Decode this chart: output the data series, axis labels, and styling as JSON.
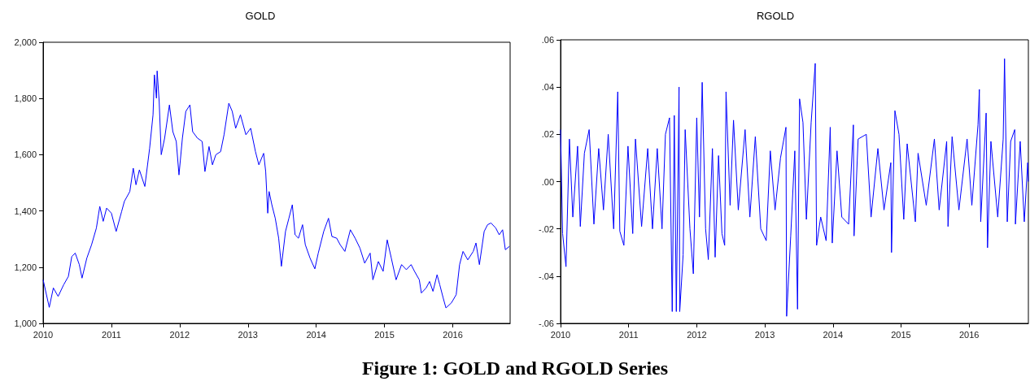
{
  "chart_data": [
    {
      "type": "line",
      "title": "GOLD",
      "annotations": [
        "Figure 1: GOLD and RGOLD Series"
      ],
      "marker": "none",
      "line_style": "solid",
      "xlim": [
        2010,
        2016.84
      ],
      "xticks": [
        2010,
        2011,
        2012,
        2013,
        2014,
        2015,
        2016
      ],
      "ylim": [
        1000,
        2000
      ],
      "yticks": [
        {
          "value": 1000,
          "label": "1,000"
        },
        {
          "value": 1200,
          "label": "1,200"
        },
        {
          "value": 1400,
          "label": "1,400"
        },
        {
          "value": 1600,
          "label": "1,600"
        },
        {
          "value": 1800,
          "label": "1,800"
        },
        {
          "value": 2000,
          "label": "2,000"
        }
      ],
      "series": [
        {
          "color": "#0000ff",
          "x": [
            2010.0,
            2010.09,
            2010.15,
            2010.22,
            2010.3,
            2010.37,
            2010.42,
            2010.47,
            2010.53,
            2010.57,
            2010.64,
            2010.71,
            2010.78,
            2010.83,
            2010.88,
            2010.93,
            2011.0,
            2011.07,
            2011.15,
            2011.19,
            2011.27,
            2011.32,
            2011.36,
            2011.41,
            2011.49,
            2011.56,
            2011.61,
            2011.63,
            2011.66,
            2011.67,
            2011.7,
            2011.73,
            2011.78,
            2011.85,
            2011.9,
            2011.95,
            2011.99,
            2012.04,
            2012.09,
            2012.15,
            2012.19,
            2012.26,
            2012.33,
            2012.37,
            2012.43,
            2012.48,
            2012.53,
            2012.6,
            2012.65,
            2012.72,
            2012.77,
            2012.82,
            2012.89,
            2012.97,
            2013.04,
            2013.11,
            2013.16,
            2013.23,
            2013.26,
            2013.29,
            2013.31,
            2013.35,
            2013.4,
            2013.45,
            2013.49,
            2013.55,
            2013.6,
            2013.65,
            2013.69,
            2013.74,
            2013.8,
            2013.84,
            2013.91,
            2013.98,
            2014.03,
            2014.11,
            2014.18,
            2014.23,
            2014.3,
            2014.35,
            2014.42,
            2014.5,
            2014.57,
            2014.64,
            2014.71,
            2014.79,
            2014.83,
            2014.91,
            2014.98,
            2015.04,
            2015.1,
            2015.17,
            2015.25,
            2015.32,
            2015.39,
            2015.44,
            2015.51,
            2015.54,
            2015.61,
            2015.66,
            2015.71,
            2015.77,
            2015.81,
            2015.86,
            2015.9,
            2015.98,
            2016.05,
            2016.1,
            2016.15,
            2016.22,
            2016.3,
            2016.34,
            2016.39,
            2016.46,
            2016.51,
            2016.56,
            2016.63,
            2016.68,
            2016.73,
            2016.77,
            2016.83
          ],
          "values": [
            1155,
            1057,
            1126,
            1096,
            1137,
            1167,
            1238,
            1250,
            1209,
            1161,
            1232,
            1280,
            1339,
            1416,
            1363,
            1410,
            1392,
            1327,
            1398,
            1434,
            1469,
            1552,
            1493,
            1546,
            1487,
            1623,
            1742,
            1884,
            1801,
            1898,
            1789,
            1600,
            1659,
            1777,
            1682,
            1647,
            1528,
            1659,
            1754,
            1777,
            1682,
            1659,
            1647,
            1540,
            1629,
            1564,
            1600,
            1611,
            1671,
            1783,
            1754,
            1694,
            1742,
            1671,
            1694,
            1611,
            1564,
            1605,
            1540,
            1392,
            1469,
            1422,
            1374,
            1303,
            1203,
            1327,
            1374,
            1422,
            1315,
            1303,
            1351,
            1280,
            1232,
            1194,
            1250,
            1327,
            1374,
            1309,
            1303,
            1280,
            1256,
            1333,
            1303,
            1268,
            1214,
            1250,
            1155,
            1220,
            1185,
            1297,
            1232,
            1155,
            1209,
            1191,
            1209,
            1185,
            1155,
            1108,
            1126,
            1149,
            1114,
            1173,
            1137,
            1090,
            1055,
            1073,
            1102,
            1209,
            1256,
            1226,
            1256,
            1286,
            1209,
            1327,
            1351,
            1357,
            1339,
            1315,
            1333,
            1262,
            1274
          ]
        }
      ]
    },
    {
      "type": "line",
      "title": "RGOLD",
      "marker": "none",
      "line_style": "solid",
      "xlim": [
        2010,
        2016.87
      ],
      "xticks": [
        2010,
        2011,
        2012,
        2013,
        2014,
        2015,
        2016
      ],
      "ylim": [
        -0.06,
        0.06
      ],
      "yticks": [
        {
          "value": -0.06,
          "label": "-.06"
        },
        {
          "value": -0.04,
          "label": "-.04"
        },
        {
          "value": -0.02,
          "label": "-.02"
        },
        {
          "value": 0,
          "label": ".00"
        },
        {
          "value": 0.02,
          "label": ".02"
        },
        {
          "value": 0.04,
          "label": ".04"
        },
        {
          "value": 0.06,
          "label": ".06"
        }
      ],
      "series": [
        {
          "color": "#0000ff",
          "x": [
            2010.0,
            2010.03,
            2010.08,
            2010.13,
            2010.18,
            2010.25,
            2010.29,
            2010.35,
            2010.42,
            2010.49,
            2010.56,
            2010.63,
            2010.7,
            2010.78,
            2010.84,
            2010.87,
            2010.93,
            2010.99,
            2011.06,
            2011.1,
            2011.19,
            2011.28,
            2011.35,
            2011.42,
            2011.49,
            2011.54,
            2011.6,
            2011.64,
            2011.67,
            2011.7,
            2011.74,
            2011.75,
            2011.8,
            2011.83,
            2011.9,
            2011.95,
            2012.0,
            2012.04,
            2012.08,
            2012.13,
            2012.17,
            2012.23,
            2012.27,
            2012.32,
            2012.37,
            2012.41,
            2012.43,
            2012.49,
            2012.54,
            2012.61,
            2012.71,
            2012.78,
            2012.86,
            2012.94,
            2013.02,
            2013.08,
            2013.15,
            2013.23,
            2013.31,
            2013.32,
            2013.38,
            2013.44,
            2013.48,
            2013.51,
            2013.56,
            2013.61,
            2013.68,
            2013.74,
            2013.76,
            2013.82,
            2013.9,
            2013.96,
            2013.99,
            2014.06,
            2014.13,
            2014.23,
            2014.3,
            2014.31,
            2014.37,
            2014.49,
            2014.56,
            2014.66,
            2014.75,
            2014.85,
            2014.86,
            2014.91,
            2014.97,
            2015.04,
            2015.09,
            2015.21,
            2015.25,
            2015.37,
            2015.49,
            2015.56,
            2015.67,
            2015.69,
            2015.75,
            2015.85,
            2015.97,
            2016.04,
            2016.13,
            2016.15,
            2016.17,
            2016.25,
            2016.27,
            2016.32,
            2016.42,
            2016.5,
            2016.52,
            2016.56,
            2016.61,
            2016.67,
            2016.68,
            2016.75,
            2016.81,
            2016.86,
            2016.87
          ],
          "values": [
            0.022,
            -0.022,
            -0.036,
            0.018,
            -0.015,
            0.015,
            -0.019,
            0.012,
            0.022,
            -0.018,
            0.014,
            -0.012,
            0.02,
            -0.02,
            0.038,
            -0.021,
            -0.027,
            0.015,
            -0.022,
            0.018,
            -0.019,
            0.014,
            -0.02,
            0.014,
            -0.02,
            0.02,
            0.027,
            -0.055,
            0.028,
            -0.055,
            0.04,
            -0.055,
            -0.031,
            0.022,
            -0.02,
            -0.039,
            0.027,
            -0.015,
            0.042,
            -0.02,
            -0.033,
            0.014,
            -0.032,
            0.011,
            -0.022,
            -0.027,
            0.038,
            -0.01,
            0.026,
            -0.012,
            0.022,
            -0.015,
            0.019,
            -0.02,
            -0.025,
            0.013,
            -0.012,
            0.01,
            0.023,
            -0.057,
            -0.023,
            0.013,
            -0.054,
            0.035,
            0.025,
            -0.016,
            0.025,
            0.05,
            -0.027,
            -0.015,
            -0.025,
            0.023,
            -0.026,
            0.013,
            -0.015,
            -0.018,
            0.024,
            -0.023,
            0.018,
            0.02,
            -0.015,
            0.014,
            -0.012,
            0.008,
            -0.03,
            0.03,
            0.02,
            -0.016,
            0.016,
            -0.017,
            0.012,
            -0.01,
            0.018,
            -0.012,
            0.017,
            -0.019,
            0.019,
            -0.012,
            0.018,
            -0.01,
            0.024,
            0.039,
            -0.017,
            0.029,
            -0.028,
            0.017,
            -0.015,
            0.018,
            0.052,
            -0.017,
            0.017,
            0.022,
            -0.018,
            0.017,
            -0.017,
            0.008,
            0.0
          ]
        }
      ]
    }
  ]
}
